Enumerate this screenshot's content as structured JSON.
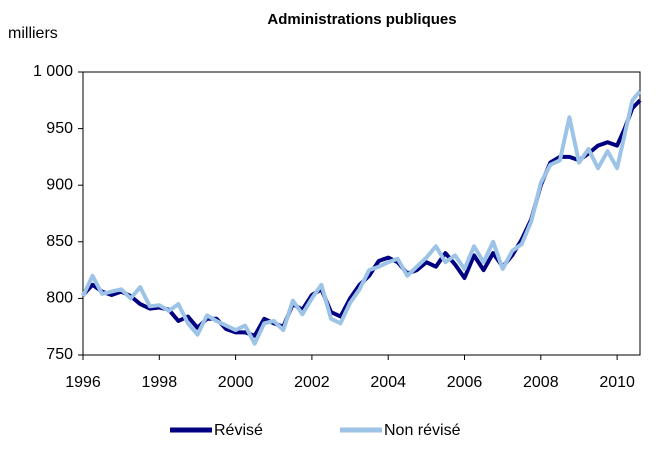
{
  "chart_data": {
    "type": "line",
    "title": "Administrations publiques",
    "y_label": "milliers",
    "xlim": [
      1996,
      2010.6
    ],
    "ylim": [
      750,
      1000
    ],
    "xticks": [
      1996,
      1998,
      2000,
      2002,
      2004,
      2006,
      2008,
      2010
    ],
    "yticks": [
      750,
      800,
      850,
      900,
      950,
      {
        "value": 1000,
        "label": "1 000"
      }
    ],
    "grid": false,
    "legend": "bottom",
    "x": [
      1996,
      1996.25,
      1996.5,
      1996.75,
      1997,
      1997.25,
      1997.5,
      1997.75,
      1998,
      1998.25,
      1998.5,
      1998.75,
      1999,
      1999.25,
      1999.5,
      1999.75,
      2000,
      2000.25,
      2000.5,
      2000.75,
      2001,
      2001.25,
      2001.5,
      2001.75,
      2002,
      2002.25,
      2002.5,
      2002.75,
      2003,
      2003.25,
      2003.5,
      2003.75,
      2004,
      2004.25,
      2004.5,
      2004.75,
      2005,
      2005.25,
      2005.5,
      2005.75,
      2006,
      2006.25,
      2006.5,
      2006.75,
      2007,
      2007.25,
      2007.5,
      2007.75,
      2008,
      2008.25,
      2008.5,
      2008.75,
      2009,
      2009.25,
      2009.5,
      2009.75,
      2010,
      2010.2,
      2010.4,
      2010.6
    ],
    "series": [
      {
        "name": "Révisé",
        "color": "#000080",
        "values": [
          803,
          812,
          806,
          803,
          806,
          802,
          795,
          791,
          792,
          790,
          780,
          784,
          774,
          782,
          782,
          773,
          770,
          770,
          767,
          782,
          778,
          775,
          795,
          790,
          803,
          808,
          788,
          784,
          800,
          812,
          820,
          833,
          836,
          832,
          822,
          825,
          832,
          828,
          840,
          830,
          818,
          838,
          825,
          840,
          828,
          838,
          852,
          870,
          900,
          920,
          925,
          925,
          922,
          928,
          935,
          938,
          935,
          950,
          968,
          975
        ]
      },
      {
        "name": "Non révisé",
        "color": "#9dc3e6",
        "values": [
          802,
          820,
          804,
          806,
          808,
          800,
          810,
          793,
          794,
          789,
          795,
          778,
          768,
          785,
          780,
          776,
          772,
          776,
          760,
          778,
          780,
          772,
          798,
          786,
          800,
          812,
          782,
          778,
          796,
          808,
          825,
          828,
          832,
          835,
          820,
          828,
          836,
          846,
          832,
          838,
          826,
          846,
          832,
          850,
          826,
          842,
          848,
          868,
          902,
          918,
          922,
          960,
          920,
          932,
          915,
          930,
          915,
          945,
          975,
          983
        ]
      }
    ]
  }
}
